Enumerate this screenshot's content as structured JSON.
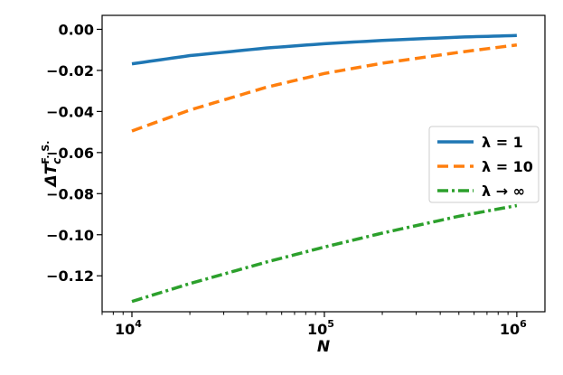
{
  "chart_data": {
    "type": "line",
    "xscale": "log",
    "xlim": [
      7000,
      1400000
    ],
    "ylim": [
      -0.1375,
      0.0068
    ],
    "xticks": [
      {
        "value": 10000,
        "base": "10",
        "exp": "4"
      },
      {
        "value": 100000,
        "base": "10",
        "exp": "5"
      },
      {
        "value": 1000000,
        "base": "10",
        "exp": "6"
      }
    ],
    "yticks": [
      {
        "value": 0.0,
        "label": "0.00"
      },
      {
        "value": -0.02,
        "label": "−0.02"
      },
      {
        "value": -0.04,
        "label": "−0.04"
      },
      {
        "value": -0.06,
        "label": "−0.06"
      },
      {
        "value": -0.08,
        "label": "−0.08"
      },
      {
        "value": -0.1,
        "label": "−0.10"
      },
      {
        "value": -0.12,
        "label": "−0.12"
      }
    ],
    "xlabel": "N",
    "ylabel": {
      "main": "ΔT",
      "sub": "c",
      "sup": "F. S."
    },
    "grid": false,
    "legend_position": "right",
    "series": [
      {
        "name": "λ = 1",
        "color": "#1f77b4",
        "style": "solid",
        "x": [
          10000,
          20000,
          50000,
          100000,
          200000,
          500000,
          1000000
        ],
        "y": [
          -0.0168,
          -0.0128,
          -0.0091,
          -0.007,
          -0.0054,
          -0.0038,
          -0.003
        ]
      },
      {
        "name": "λ = 10",
        "color": "#ff7f0e",
        "style": "dashed",
        "x": [
          10000,
          20000,
          50000,
          100000,
          200000,
          500000,
          1000000
        ],
        "y": [
          -0.0495,
          -0.0393,
          -0.0282,
          -0.0215,
          -0.0165,
          -0.0112,
          -0.0076
        ]
      },
      {
        "name": "λ → ∞",
        "color": "#2ca02c",
        "style": "dashdot",
        "x": [
          10000,
          20000,
          50000,
          100000,
          200000,
          500000,
          1000000
        ],
        "y": [
          -0.1325,
          -0.1238,
          -0.1133,
          -0.106,
          -0.0992,
          -0.091,
          -0.0858
        ]
      }
    ]
  }
}
